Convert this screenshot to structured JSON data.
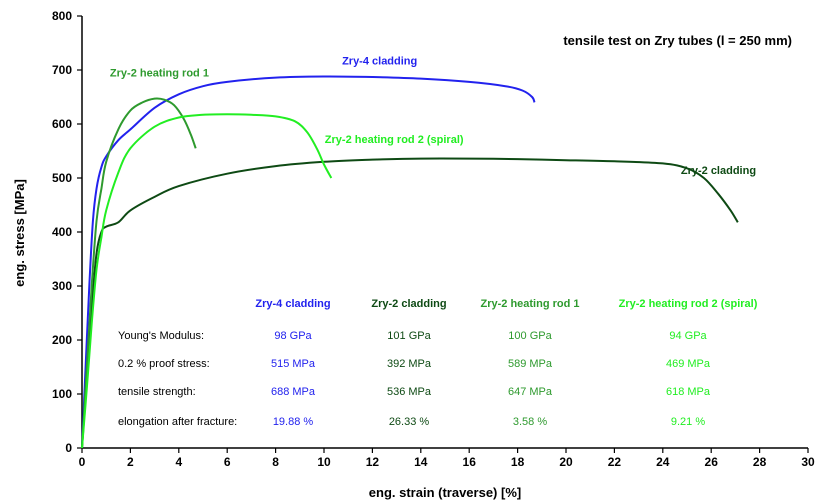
{
  "chart_data": {
    "type": "line",
    "xlabel": "eng. strain (traverse) [%]",
    "ylabel": "eng. stress [MPa]",
    "xlim": [
      0,
      30
    ],
    "ylim": [
      0,
      800
    ],
    "x_ticks": [
      "0",
      "2",
      "4",
      "6",
      "8",
      "10",
      "12",
      "14",
      "16",
      "18",
      "20",
      "22",
      "24",
      "26",
      "28",
      "30"
    ],
    "y_ticks": [
      "0",
      "100",
      "200",
      "300",
      "400",
      "500",
      "600",
      "700",
      "800"
    ],
    "grid": false,
    "annotation": "tensile test on Zry tubes (l = 250 mm)",
    "series": [
      {
        "name": "Zry-4 cladding",
        "color": "#2222ee",
        "x": [
          0,
          0.15,
          0.3,
          0.45,
          0.6,
          0.8,
          1.0,
          1.5,
          2.0,
          3.0,
          4.0,
          5.0,
          6.0,
          8.0,
          10.0,
          12.0,
          14.0,
          16.0,
          17.5,
          18.2,
          18.6,
          18.7
        ],
        "y": [
          0,
          150,
          300,
          420,
          480,
          520,
          540,
          570,
          590,
          630,
          655,
          670,
          678,
          686,
          688,
          687,
          684,
          678,
          670,
          662,
          650,
          640
        ]
      },
      {
        "name": "Zry-2 cladding",
        "color": "#0e4a14",
        "x": [
          0,
          0.2,
          0.4,
          0.6,
          0.8,
          1.0,
          1.5,
          2.0,
          3.0,
          4.0,
          6.0,
          8.0,
          10.0,
          12.0,
          14.0,
          16.0,
          18.0,
          20.0,
          22.0,
          24.0,
          25.0,
          25.7,
          26.3,
          26.8,
          27.1
        ],
        "y": [
          0,
          130,
          260,
          360,
          400,
          410,
          418,
          440,
          465,
          485,
          508,
          522,
          530,
          534,
          536,
          536,
          535,
          533,
          531,
          527,
          518,
          500,
          470,
          440,
          418
        ]
      },
      {
        "name": "Zry-2 heating rod 1",
        "color": "#2e9a2e",
        "x": [
          0,
          0.2,
          0.4,
          0.6,
          0.8,
          1.0,
          1.5,
          2.0,
          2.5,
          3.0,
          3.4,
          3.8,
          4.2,
          4.5,
          4.7
        ],
        "y": [
          0,
          150,
          300,
          420,
          480,
          530,
          590,
          625,
          640,
          647,
          645,
          635,
          610,
          580,
          555
        ]
      },
      {
        "name": "Zry-2 heating rod 2 (spiral)",
        "color": "#22ee22",
        "x": [
          0,
          0.2,
          0.4,
          0.6,
          0.8,
          1.0,
          1.5,
          2.0,
          3.0,
          4.0,
          5.0,
          6.0,
          7.0,
          8.0,
          8.8,
          9.3,
          9.7,
          10.0,
          10.3
        ],
        "y": [
          0,
          110,
          230,
          330,
          390,
          440,
          510,
          555,
          595,
          612,
          617,
          618,
          617,
          614,
          605,
          585,
          555,
          525,
          500
        ]
      }
    ],
    "table": {
      "columns": [
        "Zry-4 cladding",
        "Zry-2 cladding",
        "Zry-2 heating rod 1",
        "Zry-2 heating rod 2 (spiral)"
      ],
      "column_colors": [
        "#2222ee",
        "#0e4a14",
        "#2e9a2e",
        "#22ee22"
      ],
      "rows": [
        {
          "label": "Young's Modulus:",
          "values": [
            "98 GPa",
            "101 GPa",
            "100 GPa",
            "94 GPa"
          ]
        },
        {
          "label": "0.2 % proof stress:",
          "values": [
            "515 MPa",
            "392 MPa",
            "589 MPa",
            "469 MPa"
          ]
        },
        {
          "label": "tensile strength:",
          "values": [
            "688 MPa",
            "536 MPa",
            "647 MPa",
            "618 MPa"
          ]
        },
        {
          "label": "elongation after fracture:",
          "values": [
            "19.88 %",
            "26.33 %",
            "3.58 %",
            "9.21 %"
          ]
        }
      ]
    }
  }
}
